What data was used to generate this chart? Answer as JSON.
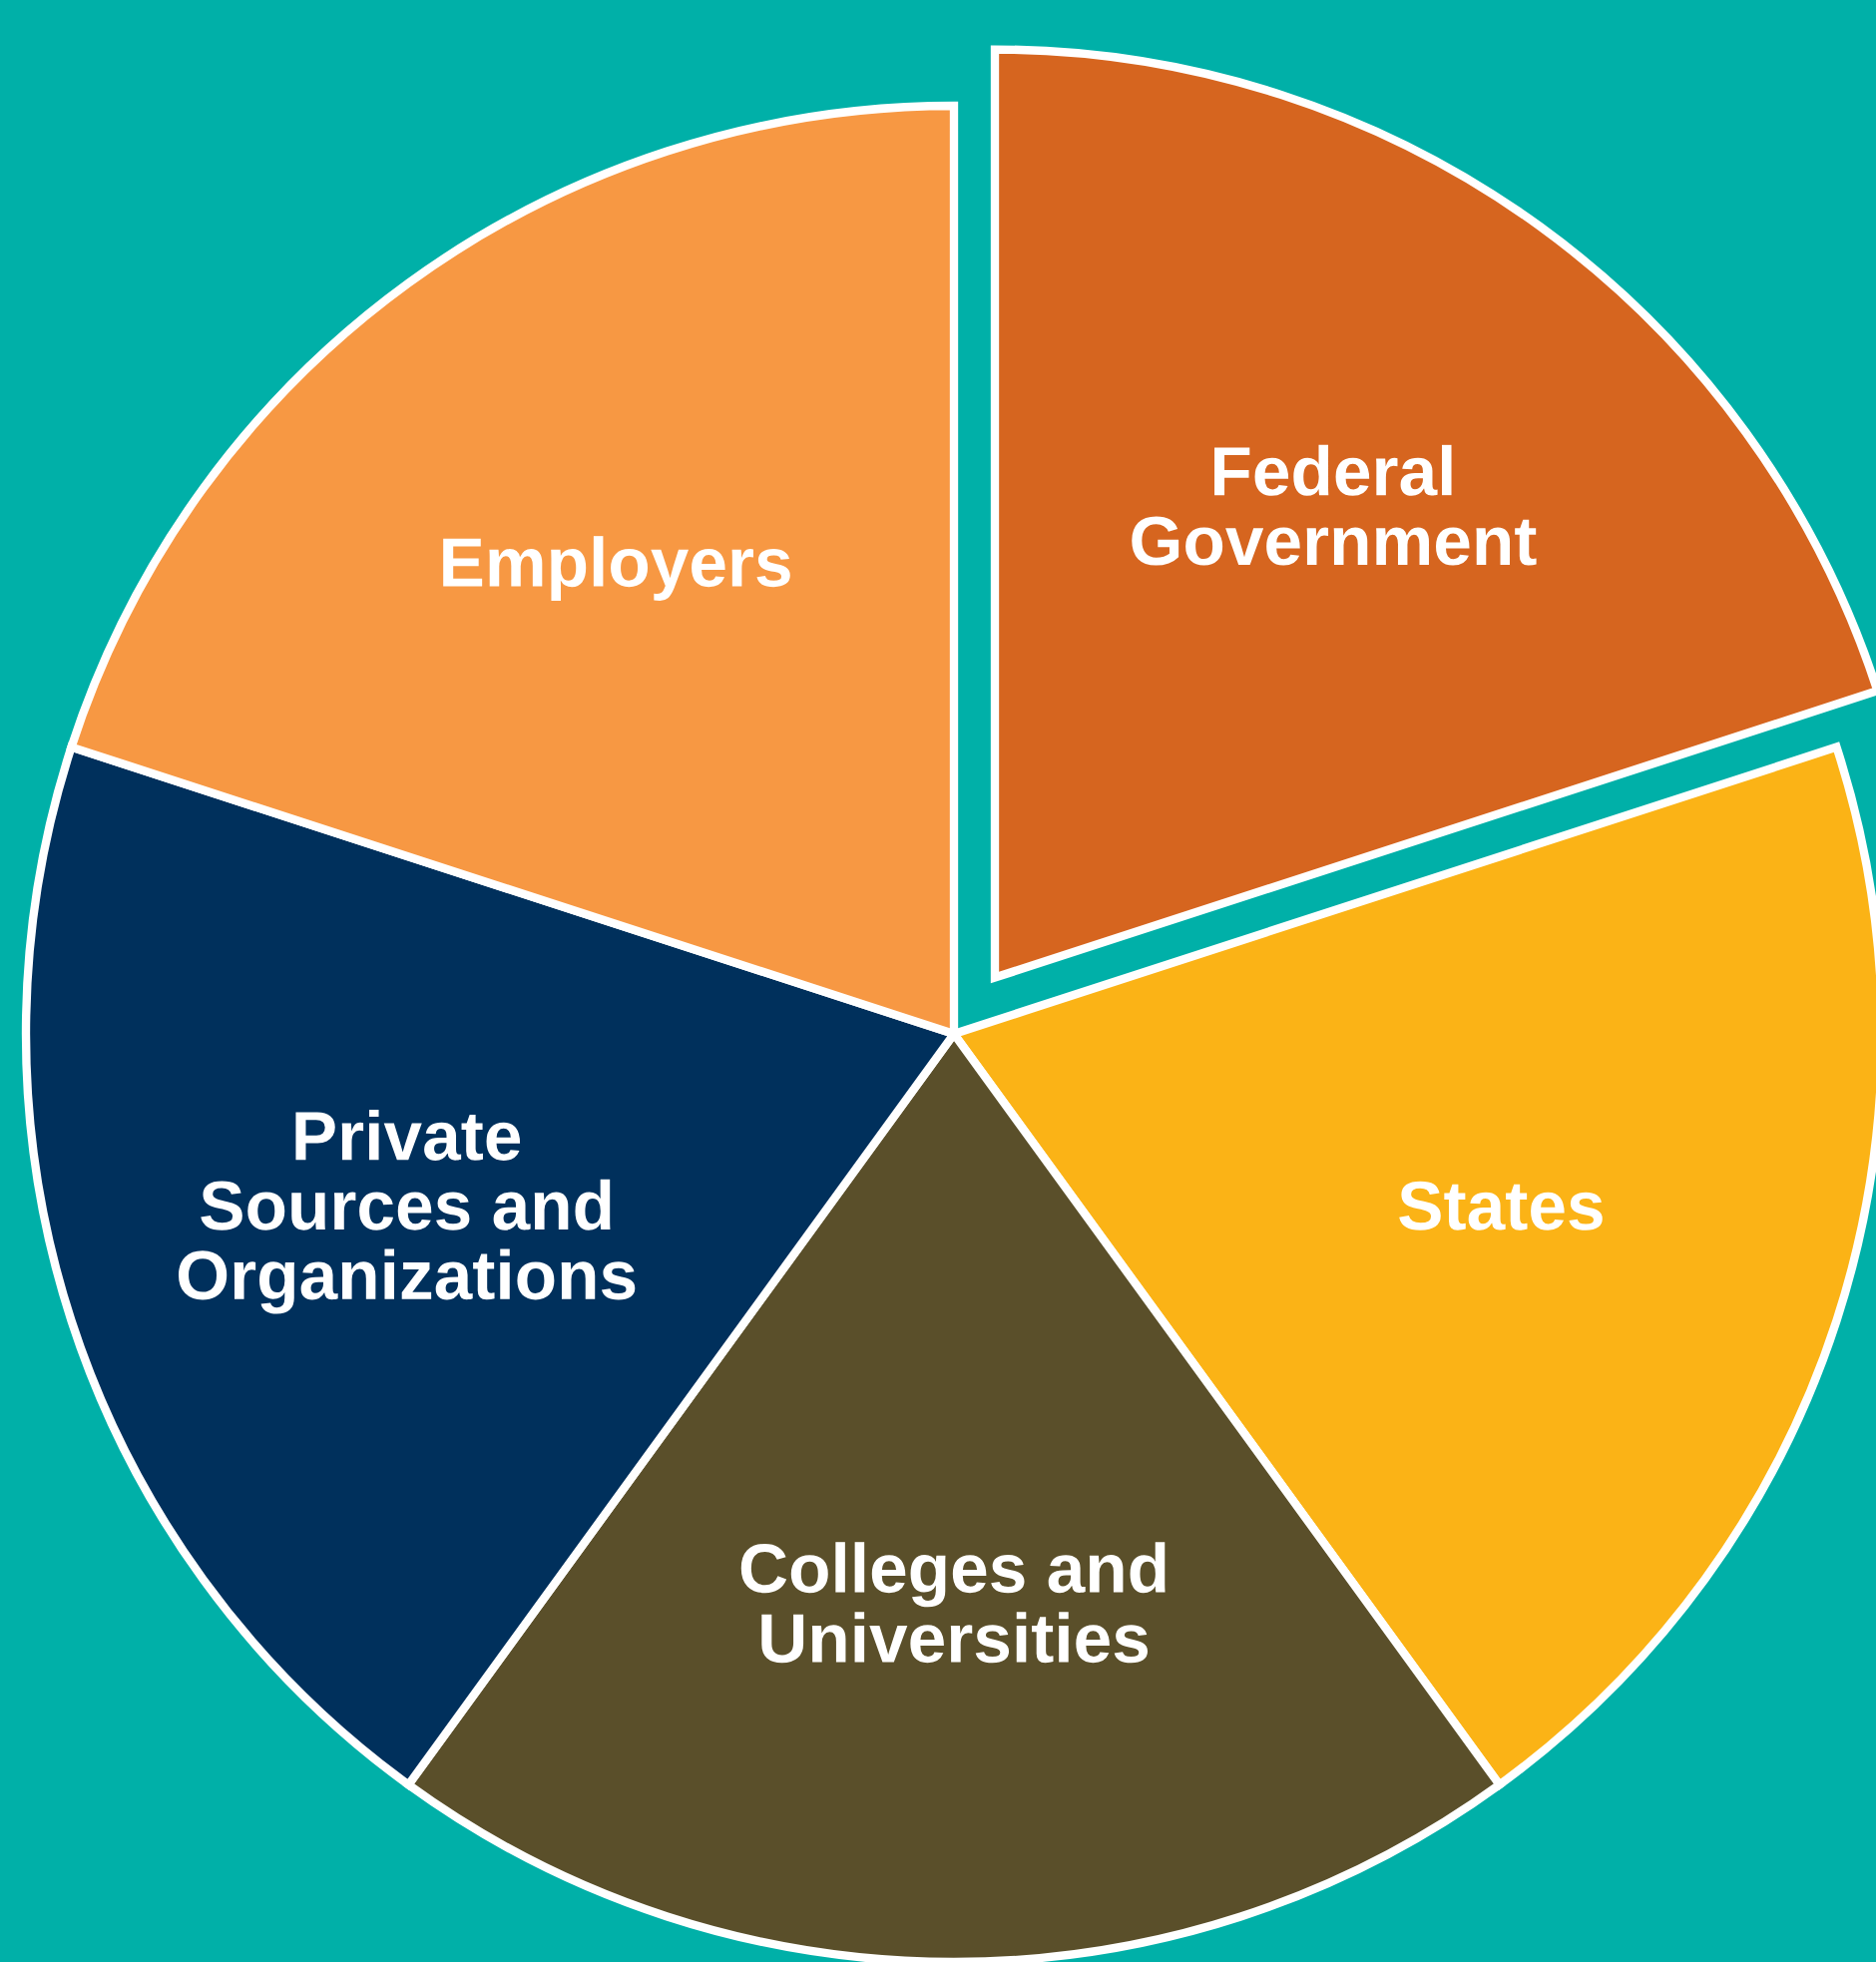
{
  "chart_data": {
    "type": "pie",
    "categories": [
      "Federal\nGovernment",
      "States",
      "Colleges and\nUniversities",
      "Private\nSources and\nOrganizations",
      "Employers"
    ],
    "values": [
      20,
      20,
      20,
      20,
      20
    ],
    "colors": [
      "#d6651f",
      "#fbb316",
      "#5a4f2a",
      "#00305c",
      "#f79843"
    ],
    "legend": false
  }
}
